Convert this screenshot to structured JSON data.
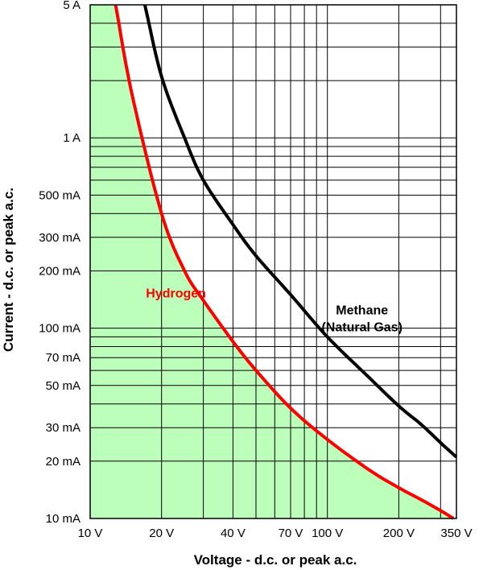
{
  "chart_data": {
    "type": "line",
    "xlabel": "Voltage - d.c. or peak a.c.",
    "ylabel": "Current - d.c. or peak a.c.",
    "x_scale": "log",
    "y_scale": "log",
    "xlim": [
      10,
      350
    ],
    "ylim": [
      0.01,
      5
    ],
    "grid": true,
    "x_ticks": [
      {
        "value": 10,
        "label": "10 V"
      },
      {
        "value": 20,
        "label": "20 V"
      },
      {
        "value": 40,
        "label": "40 V"
      },
      {
        "value": 70,
        "label": "70 V"
      },
      {
        "value": 100,
        "label": "100 V"
      },
      {
        "value": 200,
        "label": "200 V"
      },
      {
        "value": 350,
        "label": "350 V"
      }
    ],
    "x_gridlines": [
      10,
      20,
      30,
      40,
      50,
      60,
      70,
      80,
      90,
      100,
      200,
      300,
      350
    ],
    "y_ticks": [
      {
        "value": 0.01,
        "label": "10 mA"
      },
      {
        "value": 0.02,
        "label": "20 mA"
      },
      {
        "value": 0.03,
        "label": "30 mA"
      },
      {
        "value": 0.05,
        "label": "50 mA"
      },
      {
        "value": 0.07,
        "label": "70 mA"
      },
      {
        "value": 0.1,
        "label": "100 mA"
      },
      {
        "value": 0.2,
        "label": "200 mA"
      },
      {
        "value": 0.3,
        "label": "300 mA"
      },
      {
        "value": 0.5,
        "label": "500 mA"
      },
      {
        "value": 1,
        "label": "1 A"
      },
      {
        "value": 5,
        "label": "5 A"
      }
    ],
    "y_gridlines": [
      0.01,
      0.02,
      0.03,
      0.04,
      0.05,
      0.06,
      0.07,
      0.08,
      0.09,
      0.1,
      0.2,
      0.3,
      0.4,
      0.5,
      0.6,
      0.7,
      0.8,
      0.9,
      1,
      2,
      3,
      4,
      5
    ],
    "series": [
      {
        "name": "Hydrogen",
        "color": "#ff0000",
        "fill_color": "#bbffbb",
        "filled_below": true,
        "x": [
          12.8,
          15,
          20,
          25,
          30,
          40,
          50,
          70,
          100,
          150,
          200,
          250,
          300,
          340
        ],
        "y": [
          5,
          1.7,
          0.4,
          0.2,
          0.14,
          0.085,
          0.06,
          0.038,
          0.026,
          0.018,
          0.0145,
          0.0125,
          0.011,
          0.01
        ]
      },
      {
        "name": "Methane\n(Natural Gas)",
        "color": "#000000",
        "filled_below": false,
        "x": [
          17,
          20,
          25,
          30,
          40,
          50,
          70,
          100,
          150,
          200,
          250,
          300,
          350
        ],
        "y": [
          5,
          2.1,
          1.0,
          0.6,
          0.35,
          0.24,
          0.15,
          0.09,
          0.055,
          0.039,
          0.031,
          0.025,
          0.021
        ]
      }
    ]
  }
}
